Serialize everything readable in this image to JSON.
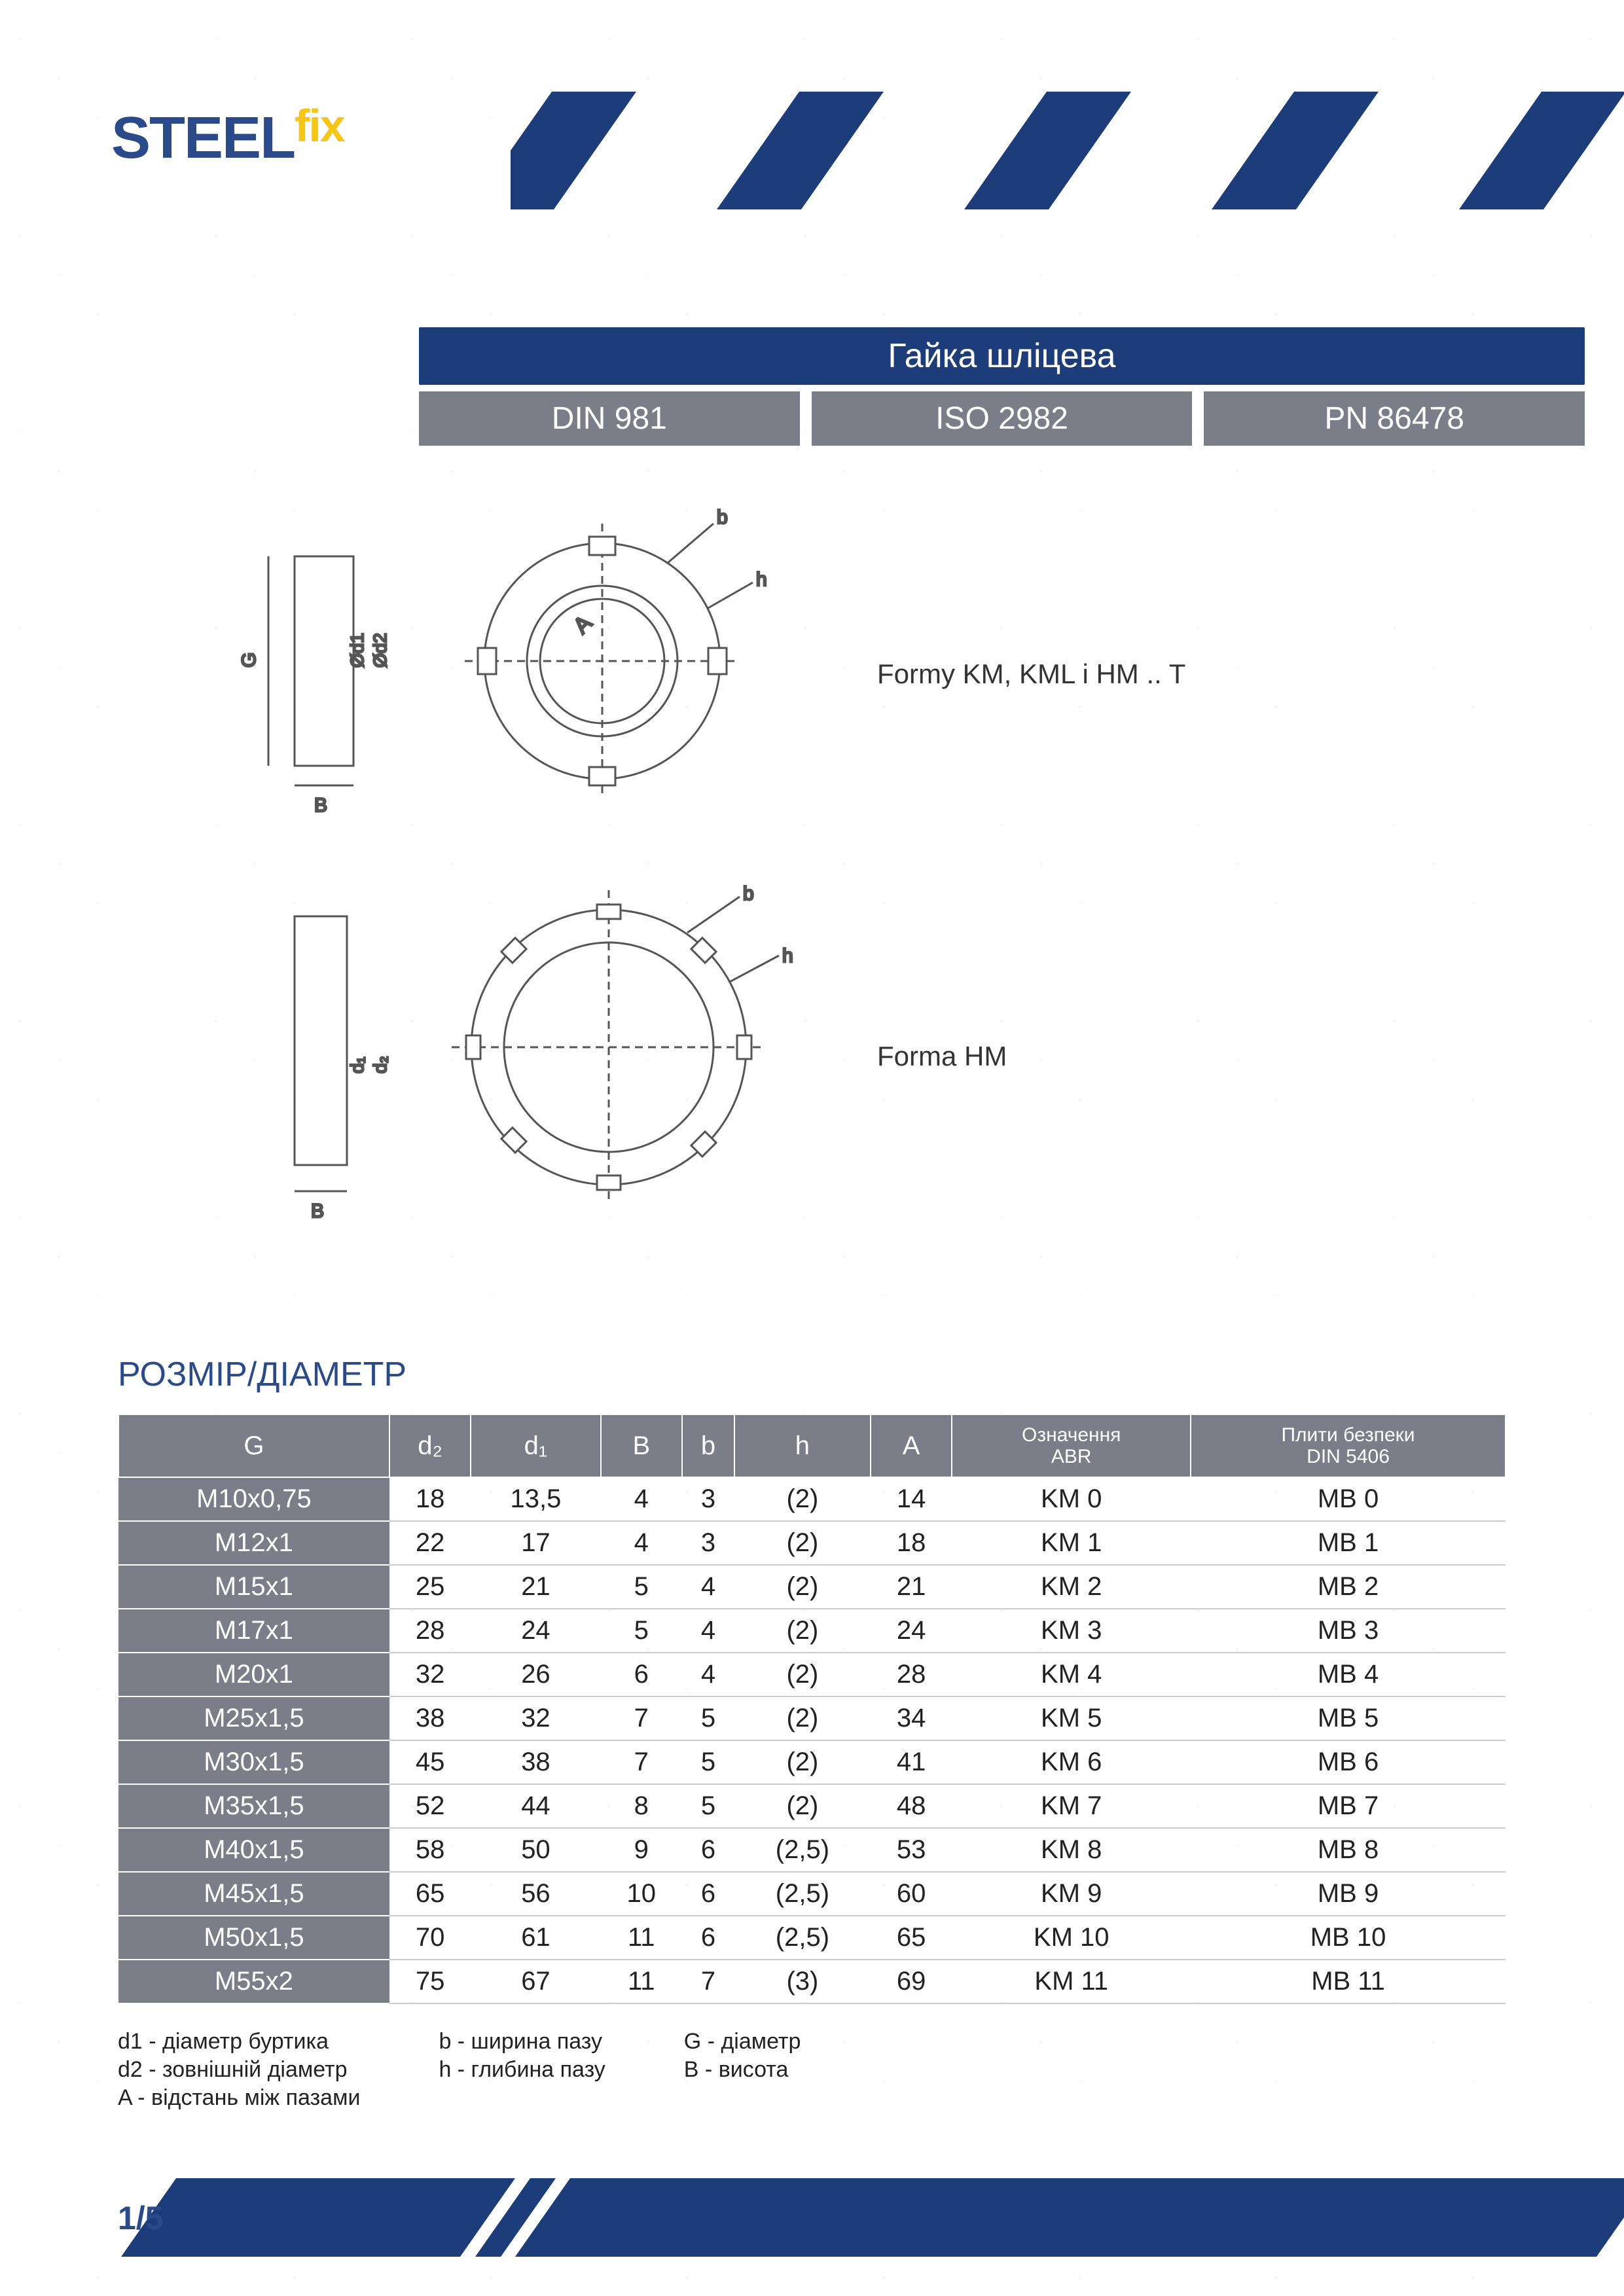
{
  "logo": {
    "part1": "STEEL",
    "part2": "fix"
  },
  "title": "Гайка шліцева",
  "standards": [
    "DIN 981",
    "ISO 2982",
    "PN 86478"
  ],
  "forma_labels": [
    "Formy KM, KML i HM .. T",
    "Forma  HM"
  ],
  "size_heading": "РОЗМІР/ДІАМЕТР",
  "table": {
    "headers": [
      "G",
      "d₂",
      "d₁",
      "B",
      "b",
      "h",
      "A",
      "Означення\nABR",
      "Плити безпеки\nDIN 5406"
    ],
    "rows": [
      [
        "M10x0,75",
        "18",
        "13,5",
        "4",
        "3",
        "(2)",
        "14",
        "KM 0",
        "MB 0"
      ],
      [
        "M12x1",
        "22",
        "17",
        "4",
        "3",
        "(2)",
        "18",
        "KM  1",
        "MB 1"
      ],
      [
        "M15x1",
        "25",
        "21",
        "5",
        "4",
        "(2)",
        "21",
        "KM  2",
        "MB 2"
      ],
      [
        "M17x1",
        "28",
        "24",
        "5",
        "4",
        "(2)",
        "24",
        "KM 3",
        "MB 3"
      ],
      [
        "M20x1",
        "32",
        "26",
        "6",
        "4",
        "(2)",
        "28",
        "KM 4",
        "MB 4"
      ],
      [
        "M25x1,5",
        "38",
        "32",
        "7",
        "5",
        "(2)",
        "34",
        "KM 5",
        "MB 5"
      ],
      [
        "M30x1,5",
        "45",
        "38",
        "7",
        "5",
        "(2)",
        "41",
        "KM 6",
        "MB 6"
      ],
      [
        "M35x1,5",
        "52",
        "44",
        "8",
        "5",
        "(2)",
        "48",
        "KM 7",
        "MB 7"
      ],
      [
        "M40x1,5",
        "58",
        "50",
        "9",
        "6",
        "(2,5)",
        "53",
        "KM 8",
        "MB 8"
      ],
      [
        "M45x1,5",
        "65",
        "56",
        "10",
        "6",
        "(2,5)",
        "60",
        "KM 9",
        "MB 9"
      ],
      [
        "M50x1,5",
        "70",
        "61",
        "11",
        "6",
        "(2,5)",
        "65",
        "KM 10",
        "MB 10"
      ],
      [
        "M55x2",
        "75",
        "67",
        "11",
        "7",
        "(3)",
        "69",
        "KM 11",
        "MB 11"
      ]
    ]
  },
  "legend": {
    "col1": [
      "d1 - діаметр буртика",
      "d2 - зовнішній діаметр",
      "A - відстань між пазами"
    ],
    "col2": [
      "b - ширина пазу",
      "h - глибина пазу"
    ],
    "col3": [
      "G - діаметр",
      "B - висота"
    ]
  },
  "page": "1/5",
  "colors": {
    "primary": "#1c3c7a",
    "secondary": "#7b7e88",
    "accent": "#f5c518"
  }
}
